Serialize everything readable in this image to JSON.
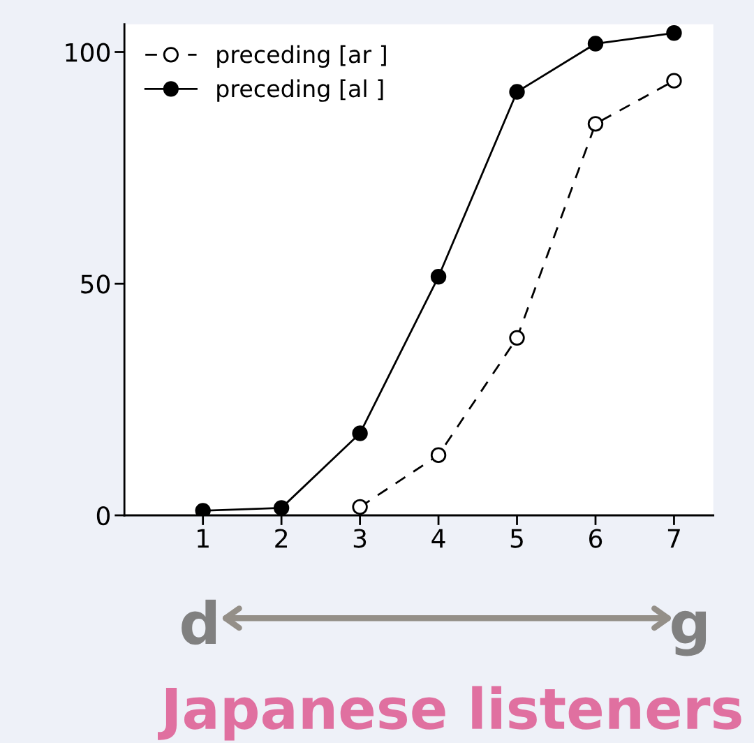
{
  "chart_data": {
    "type": "line",
    "x": [
      1,
      2,
      3,
      4,
      5,
      6,
      7
    ],
    "xlim": [
      0,
      7.5
    ],
    "ylim": [
      0,
      106
    ],
    "xticks": [
      1,
      2,
      3,
      4,
      5,
      6,
      7
    ],
    "yticks": [
      0,
      50,
      100
    ],
    "grid": false,
    "legend": "top left",
    "marker": "circle",
    "series": [
      {
        "name": "preceding [ar ]",
        "color": "#000000",
        "line_style": "dashed",
        "values": [
          null,
          null,
          1.8,
          13,
          38.3,
          84.5,
          93.8
        ]
      },
      {
        "name": "preceding [al ]",
        "color": "#000000",
        "line_style": "solid",
        "values": [
          1,
          1.6,
          17.7,
          51.5,
          91.4,
          101.8,
          104.1
        ]
      }
    ],
    "annotations": [
      "d",
      "g",
      "Japanese listeners"
    ]
  }
}
